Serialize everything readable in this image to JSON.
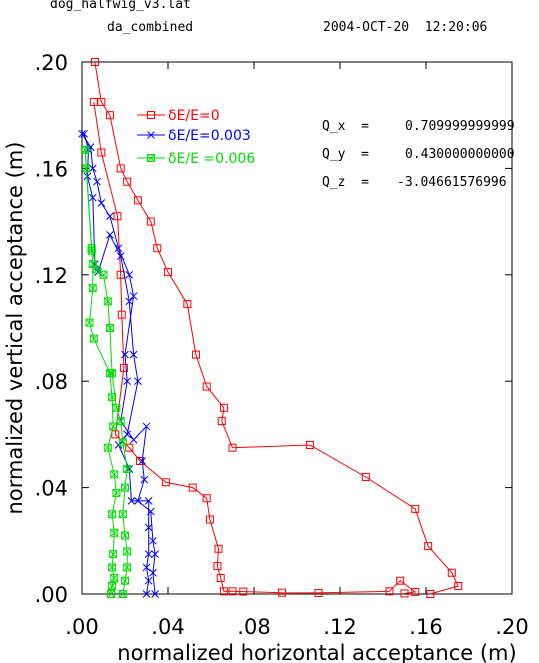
{
  "header": {
    "file": "dog_halfwig_v3.lat",
    "subtitle": "da_combined",
    "timestamp": "2004-OCT-20  12:20:06"
  },
  "params": [
    {
      "label": "Q_x  =",
      "value": "0.709999999999"
    },
    {
      "label": "Q_y  =",
      "value": "0.430000000000"
    },
    {
      "label": "Q_z  =",
      "value": "-3.04661576996"
    }
  ],
  "chart_data": {
    "type": "line",
    "xlabel": "normalized horizontal acceptance (m)",
    "ylabel": "normalized vertical acceptance (m)",
    "xlim": [
      0.0,
      0.2
    ],
    "ylim": [
      0.0,
      0.2
    ],
    "xticks": [
      ".00",
      ".04",
      ".08",
      ".12",
      ".16",
      ".20"
    ],
    "yticks": [
      ".00",
      ".04",
      ".08",
      ".12",
      ".16",
      ".20"
    ],
    "legend_position": "top-left",
    "series": [
      {
        "name": "δE/E=0",
        "color": "#ff0000",
        "marker": "square",
        "points": [
          [
            0.0055,
            0.185
          ],
          [
            0.009,
            0.166
          ],
          [
            0.0165,
            0.142
          ],
          [
            0.018,
            0.12
          ],
          [
            0.0185,
            0.105
          ],
          [
            0.0195,
            0.085
          ],
          [
            0.0155,
            0.06
          ],
          [
            0.022,
            0.055
          ],
          [
            0.027,
            0.05
          ],
          [
            0.039,
            0.042
          ],
          [
            0.0515,
            0.04
          ],
          [
            0.058,
            0.036
          ],
          [
            0.0595,
            0.028
          ],
          [
            0.0635,
            0.017
          ],
          [
            0.063,
            0.0105
          ],
          [
            0.0645,
            0.006
          ],
          [
            0.066,
            0.001
          ],
          [
            0.07,
            0.001
          ],
          [
            0.075,
            0.0009
          ],
          [
            0.093,
            0.0005
          ],
          [
            0.11,
            0.0004
          ],
          [
            0.143,
            0.001
          ],
          [
            0.148,
            0.005
          ],
          [
            0.155,
            0.0008
          ],
          [
            0.15,
            0.0002
          ]
        ],
        "outer": [
          [
            0.006,
            0.2
          ],
          [
            0.009,
            0.185
          ],
          [
            0.013,
            0.18
          ],
          [
            0.018,
            0.16
          ],
          [
            0.021,
            0.155
          ],
          [
            0.026,
            0.148
          ],
          [
            0.032,
            0.14
          ],
          [
            0.035,
            0.13
          ],
          [
            0.04,
            0.121
          ],
          [
            0.049,
            0.109
          ],
          [
            0.053,
            0.09
          ],
          [
            0.058,
            0.078
          ],
          [
            0.066,
            0.07
          ],
          [
            0.065,
            0.065
          ],
          [
            0.07,
            0.055
          ],
          [
            0.106,
            0.056
          ],
          [
            0.132,
            0.044
          ],
          [
            0.155,
            0.032
          ],
          [
            0.161,
            0.018
          ],
          [
            0.172,
            0.008
          ],
          [
            0.175,
            0.003
          ],
          [
            0.162,
            0.0
          ]
        ]
      },
      {
        "name": "δE/E=0.003",
        "color": "#0000ff",
        "marker": "x",
        "points": [
          [
            0.001,
            0.173
          ],
          [
            0.003,
            0.167
          ],
          [
            0.0025,
            0.157
          ],
          [
            0.005,
            0.149
          ],
          [
            0.006,
            0.124
          ],
          [
            0.0075,
            0.121
          ],
          [
            0.013,
            0.135
          ],
          [
            0.018,
            0.127
          ],
          [
            0.022,
            0.11
          ],
          [
            0.024,
            0.09
          ],
          [
            0.026,
            0.08
          ],
          [
            0.021,
            0.06
          ],
          [
            0.017,
            0.056
          ],
          [
            0.022,
            0.047
          ],
          [
            0.023,
            0.035
          ],
          [
            0.031,
            0.035
          ],
          [
            0.031,
            0.025
          ],
          [
            0.031,
            0.015
          ],
          [
            0.03,
            0.01
          ],
          [
            0.031,
            0.005
          ],
          [
            0.03,
            0.0
          ]
        ],
        "outer": [
          [
            0.0,
            0.173
          ],
          [
            0.004,
            0.168
          ],
          [
            0.005,
            0.16
          ],
          [
            0.007,
            0.155
          ],
          [
            0.009,
            0.147
          ],
          [
            0.013,
            0.142
          ],
          [
            0.017,
            0.13
          ],
          [
            0.022,
            0.12
          ],
          [
            0.024,
            0.112
          ],
          [
            0.02,
            0.09
          ],
          [
            0.021,
            0.08
          ],
          [
            0.018,
            0.065
          ],
          [
            0.024,
            0.058
          ],
          [
            0.03,
            0.063
          ],
          [
            0.028,
            0.05
          ],
          [
            0.029,
            0.043
          ],
          [
            0.026,
            0.035
          ],
          [
            0.032,
            0.031
          ],
          [
            0.033,
            0.02
          ],
          [
            0.034,
            0.015
          ],
          [
            0.033,
            0.008
          ],
          [
            0.034,
            0.0
          ]
        ]
      },
      {
        "name": "δE/E =0.006",
        "color": "#00dd00",
        "marker": "square-x",
        "points": [
          [
            0.0015,
            0.167
          ],
          [
            0.002,
            0.16
          ],
          [
            0.0045,
            0.129
          ],
          [
            0.005,
            0.124
          ],
          [
            0.005,
            0.115
          ],
          [
            0.0035,
            0.102
          ],
          [
            0.0055,
            0.096
          ],
          [
            0.013,
            0.083
          ],
          [
            0.014,
            0.074
          ],
          [
            0.0145,
            0.063
          ],
          [
            0.012,
            0.055
          ],
          [
            0.015,
            0.045
          ],
          [
            0.016,
            0.038
          ],
          [
            0.014,
            0.03
          ],
          [
            0.015,
            0.023
          ],
          [
            0.0145,
            0.015
          ],
          [
            0.014,
            0.01
          ],
          [
            0.015,
            0.006
          ],
          [
            0.014,
            0.003
          ],
          [
            0.0135,
            0.0
          ]
        ],
        "outer": [
          [
            0.0015,
            0.167
          ],
          [
            0.0045,
            0.13
          ],
          [
            0.007,
            0.122
          ],
          [
            0.01,
            0.12
          ],
          [
            0.012,
            0.11
          ],
          [
            0.013,
            0.1
          ],
          [
            0.014,
            0.083
          ],
          [
            0.016,
            0.07
          ],
          [
            0.018,
            0.065
          ],
          [
            0.019,
            0.057
          ],
          [
            0.021,
            0.047
          ],
          [
            0.02,
            0.04
          ],
          [
            0.019,
            0.03
          ],
          [
            0.02,
            0.022
          ],
          [
            0.021,
            0.016
          ],
          [
            0.021,
            0.01
          ],
          [
            0.02,
            0.005
          ],
          [
            0.019,
            0.0
          ]
        ]
      }
    ]
  }
}
